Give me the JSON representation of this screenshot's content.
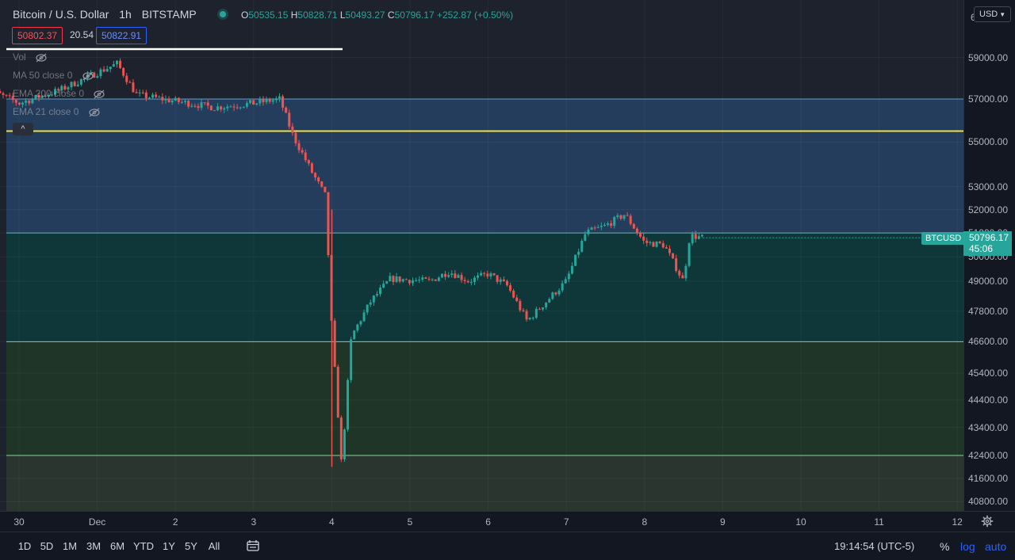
{
  "symbol": {
    "title": "Bitcoin / U.S. Dollar",
    "interval": "1h",
    "exchange": "BITSTAMP",
    "ohlc": {
      "o_label": "O",
      "o": "50535.15",
      "h_label": "H",
      "h": "50828.71",
      "l_label": "L",
      "l": "50493.27",
      "c_label": "C",
      "c": "50796.17",
      "change": "+252.87 (+0.50%)"
    }
  },
  "quote": {
    "sell": "50802.37",
    "spread": "20.54",
    "buy": "50822.91"
  },
  "indicators": [
    {
      "label": "Vol"
    },
    {
      "label": "MA 50 close 0"
    },
    {
      "label": "EMA 200 close 0"
    },
    {
      "label": "EMA 21 close 0"
    }
  ],
  "currency": "USD",
  "price_axis": {
    "top_partial": "6",
    "ticks": [
      "59000.00",
      "57000.00",
      "55000.00",
      "53000.00",
      "52000.00",
      "51000.00",
      "50000.00",
      "49000.00",
      "47800.00",
      "46600.00",
      "45400.00",
      "44400.00",
      "43400.00",
      "42400.00",
      "41600.00",
      "40800.00"
    ]
  },
  "last_price": {
    "symbol_tag": "BTCUSD",
    "value": "50796.17",
    "countdown": "45:06"
  },
  "time_axis": {
    "ticks": [
      "30",
      "Dec",
      "2",
      "3",
      "4",
      "5",
      "6",
      "7",
      "8",
      "9",
      "10",
      "11",
      "12"
    ]
  },
  "ranges": [
    "1D",
    "5D",
    "1M",
    "3M",
    "6M",
    "YTD",
    "1Y",
    "5Y",
    "All"
  ],
  "clock": "19:14:54 (UTC-5)",
  "scale_controls": {
    "percent": "%",
    "log": "log",
    "auto": "auto"
  },
  "colors": {
    "up": "#26a69a",
    "down": "#ef5350",
    "yellow_level": "#f0e046",
    "blue_zone": "#2a4a73",
    "teal_zone": "#0f3d3e",
    "green_zone": "#1f3b2a"
  },
  "chart_data": {
    "type": "candlestick",
    "symbol": "BTCUSD",
    "interval": "1h",
    "y_scale": "log",
    "horizontal_levels": [
      57000,
      55500,
      51000,
      46600,
      42400
    ],
    "zones": [
      {
        "from": 51000,
        "to": 57000,
        "color": "blue"
      },
      {
        "from": 46600,
        "to": 51000,
        "color": "teal"
      },
      {
        "from": 42400,
        "to": 46600,
        "color": "green"
      }
    ],
    "price_path": [
      [
        "Nov 29 12:00",
        57600
      ],
      [
        "Nov 30 00:00",
        56800
      ],
      [
        "Nov 30 12:00",
        57400
      ],
      [
        "Dec 1 06:00",
        58700
      ],
      [
        "Dec 1 12:00",
        57200
      ],
      [
        "Dec 2 00:00",
        56900
      ],
      [
        "Dec 2 12:00",
        56600
      ],
      [
        "Dec 3 00:00",
        56800
      ],
      [
        "Dec 3 08:00",
        57000
      ],
      [
        "Dec 3 12:00",
        55300
      ],
      [
        "Dec 3 18:00",
        53600
      ],
      [
        "Dec 3 22:00",
        52600
      ],
      [
        "Dec 4 00:00",
        47000
      ],
      [
        "Dec 4 03:00",
        42000
      ],
      [
        "Dec 4 06:00",
        46800
      ],
      [
        "Dec 4 12:00",
        48200
      ],
      [
        "Dec 4 18:00",
        49100
      ],
      [
        "Dec 5 06:00",
        49000
      ],
      [
        "Dec 5 12:00",
        49400
      ],
      [
        "Dec 5 18:00",
        49000
      ],
      [
        "Dec 6 00:00",
        49300
      ],
      [
        "Dec 6 06:00",
        48800
      ],
      [
        "Dec 6 12:00",
        47400
      ],
      [
        "Dec 6 18:00",
        48200
      ],
      [
        "Dec 7 00:00",
        49000
      ],
      [
        "Dec 7 06:00",
        51000
      ],
      [
        "Dec 7 12:00",
        51300
      ],
      [
        "Dec 7 18:00",
        51800
      ],
      [
        "Dec 8 00:00",
        50600
      ],
      [
        "Dec 8 06:00",
        50500
      ],
      [
        "Dec 8 12:00",
        49000
      ],
      [
        "Dec 8 14:00",
        50900
      ],
      [
        "Dec 8 18:00",
        50796
      ]
    ]
  }
}
